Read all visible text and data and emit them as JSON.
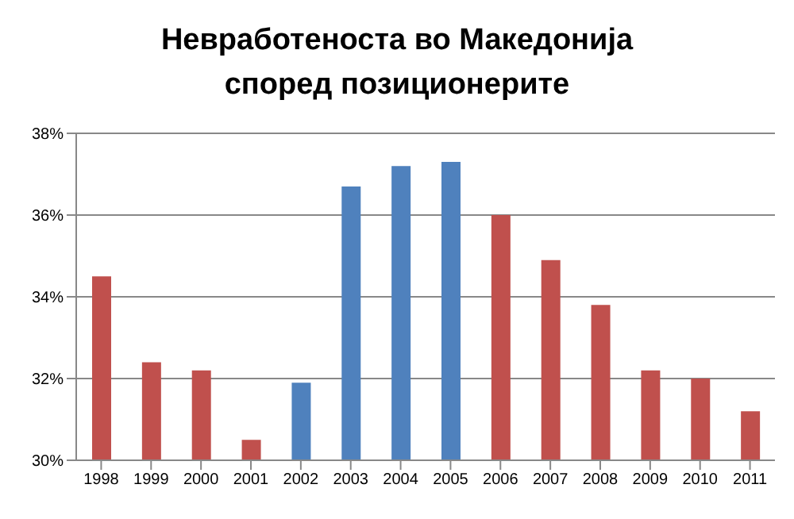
{
  "chart_data": {
    "type": "bar",
    "title": "Невработеноста во Македонија\nспоред позиционерите",
    "categories": [
      "1998",
      "1999",
      "2000",
      "2001",
      "2002",
      "2003",
      "2004",
      "2005",
      "2006",
      "2007",
      "2008",
      "2009",
      "2010",
      "2011"
    ],
    "values": [
      34.5,
      32.4,
      32.2,
      30.5,
      31.9,
      36.7,
      37.2,
      37.3,
      36.0,
      34.9,
      33.8,
      32.2,
      32.0,
      31.2
    ],
    "colors": [
      "#c0504d",
      "#c0504d",
      "#c0504d",
      "#c0504d",
      "#4f81bd",
      "#4f81bd",
      "#4f81bd",
      "#4f81bd",
      "#c0504d",
      "#c0504d",
      "#c0504d",
      "#c0504d",
      "#c0504d",
      "#c0504d"
    ],
    "ylim": [
      30,
      38
    ],
    "yticks": [
      {
        "value": 30,
        "label": "30%"
      },
      {
        "value": 32,
        "label": "32%"
      },
      {
        "value": 34,
        "label": "34%"
      },
      {
        "value": 36,
        "label": "36%"
      },
      {
        "value": 38,
        "label": "38%"
      }
    ],
    "grid": "y",
    "legend": false
  }
}
